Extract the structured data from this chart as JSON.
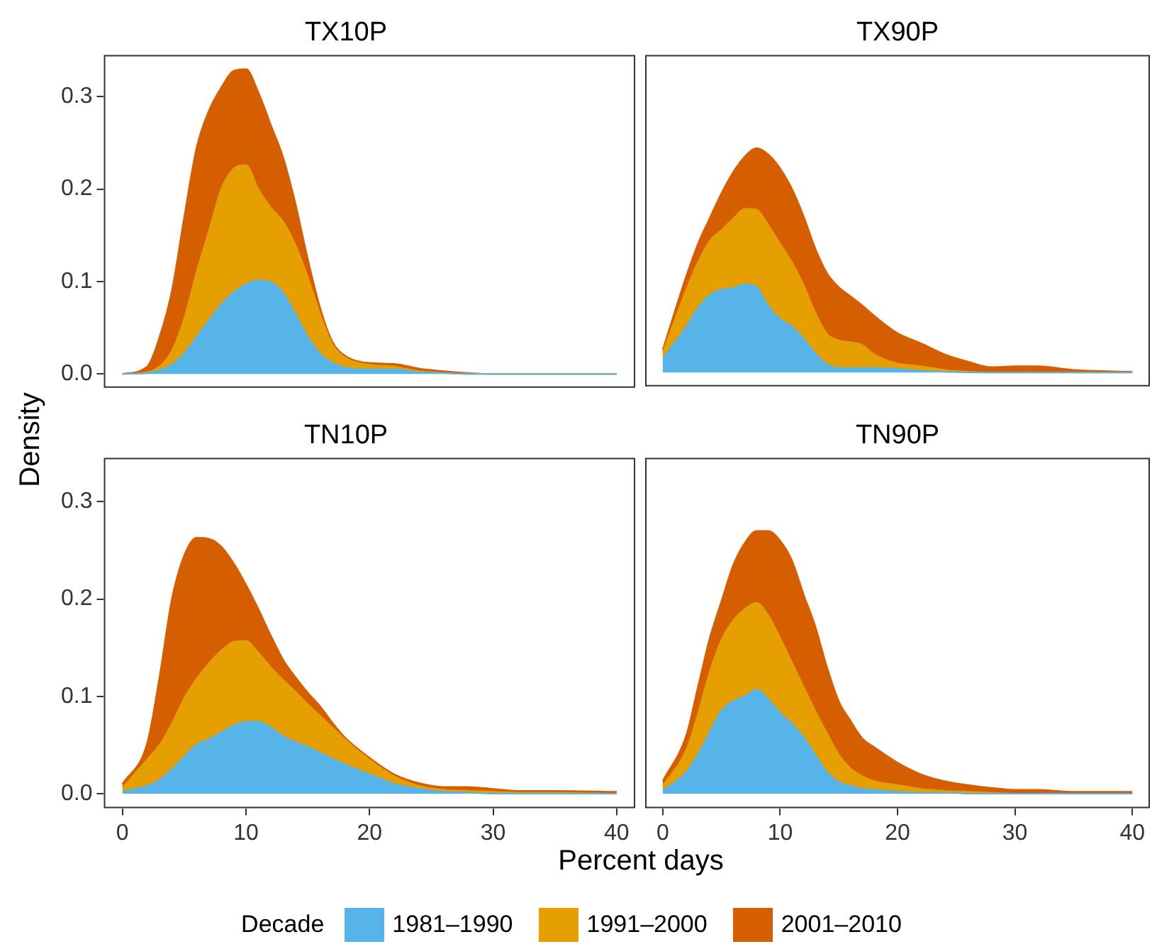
{
  "chart_data": [
    {
      "type": "area",
      "title": "TX10P",
      "ylabel": "Density",
      "stacked": true,
      "legend": "bottom",
      "legend_title": "Decade",
      "tick_labels": "y",
      "xlim": [
        -1.5,
        41.5
      ],
      "xticks": [
        0,
        10,
        20,
        30,
        40
      ],
      "ylim": [
        -0.015,
        0.345
      ],
      "yticks": [
        {
          "value": 0,
          "label": "0.0"
        },
        0.1,
        0.2,
        0.3
      ],
      "x": [
        0,
        2,
        3,
        4,
        5,
        6,
        7,
        8,
        9,
        10,
        11,
        12,
        13,
        14,
        15,
        16,
        17,
        18,
        20,
        22,
        24,
        26,
        28,
        30,
        32,
        35,
        40
      ],
      "series": [
        {
          "name": "1981–1990",
          "color": "#56b4e9",
          "values": [
            0,
            0.001,
            0.004,
            0.01,
            0.022,
            0.04,
            0.058,
            0.075,
            0.088,
            0.097,
            0.101,
            0.099,
            0.088,
            0.065,
            0.04,
            0.022,
            0.012,
            0.007,
            0.005,
            0.005,
            0.002,
            0.001,
            0,
            0,
            0,
            0,
            0
          ]
        },
        {
          "name": "1991–2000",
          "color": "#e69f00",
          "values": [
            0,
            0.001,
            0.004,
            0.015,
            0.038,
            0.07,
            0.097,
            0.125,
            0.134,
            0.129,
            0.099,
            0.081,
            0.077,
            0.075,
            0.065,
            0.043,
            0.02,
            0.011,
            0.005,
            0.003,
            0.001,
            0,
            0,
            0,
            0,
            0,
            0
          ]
        },
        {
          "name": "2001–2010",
          "color": "#d55e00",
          "values": [
            0,
            0.006,
            0.032,
            0.065,
            0.11,
            0.135,
            0.13,
            0.11,
            0.106,
            0.104,
            0.105,
            0.09,
            0.07,
            0.045,
            0.02,
            0.007,
            0.003,
            0.002,
            0.002,
            0.003,
            0.003,
            0.002,
            0.001,
            0,
            0,
            0,
            0
          ]
        }
      ]
    },
    {
      "type": "area",
      "title": "TX90P",
      "stacked": true,
      "tick_labels": false,
      "xlim": [
        -1.5,
        41.5
      ],
      "ylim": [
        -0.015,
        0.345
      ],
      "x": [
        0,
        2,
        3,
        4,
        5,
        6,
        7,
        8,
        9,
        10,
        11,
        12,
        13,
        14,
        15,
        16,
        17,
        18,
        20,
        22,
        24,
        26,
        28,
        30,
        32,
        35,
        40
      ],
      "series": [
        {
          "color": "#56b4e9",
          "values": [
            0.015,
            0.05,
            0.07,
            0.084,
            0.09,
            0.092,
            0.096,
            0.093,
            0.072,
            0.058,
            0.05,
            0.037,
            0.021,
            0.009,
            0.005,
            0.005,
            0.005,
            0.005,
            0.004,
            0.002,
            0.001,
            0,
            0,
            0,
            0,
            0,
            0
          ]
        },
        {
          "color": "#e69f00",
          "values": [
            0.007,
            0.04,
            0.05,
            0.059,
            0.065,
            0.075,
            0.082,
            0.084,
            0.088,
            0.082,
            0.07,
            0.058,
            0.044,
            0.033,
            0.03,
            0.028,
            0.025,
            0.015,
            0.006,
            0.005,
            0.002,
            0.001,
            0,
            0,
            0,
            0,
            0
          ]
        },
        {
          "color": "#d55e00",
          "values": [
            0.003,
            0.015,
            0.02,
            0.025,
            0.04,
            0.051,
            0.057,
            0.067,
            0.077,
            0.082,
            0.08,
            0.075,
            0.07,
            0.066,
            0.058,
            0.05,
            0.043,
            0.042,
            0.033,
            0.025,
            0.017,
            0.011,
            0.006,
            0.007,
            0.007,
            0.003,
            0.001
          ]
        }
      ]
    },
    {
      "type": "area",
      "title": "TN10P",
      "xlabel": "Percent days",
      "stacked": true,
      "xlim": [
        -1.5,
        41.5
      ],
      "xticks": [
        0,
        10,
        20,
        30,
        40
      ],
      "ylim": [
        -0.015,
        0.345
      ],
      "yticks": [
        {
          "value": 0,
          "label": "0.0"
        },
        0.1,
        0.2,
        0.3
      ],
      "x": [
        0,
        2,
        3,
        4,
        5,
        6,
        7,
        8,
        9,
        10,
        11,
        12,
        13,
        14,
        15,
        16,
        17,
        18,
        20,
        22,
        24,
        26,
        28,
        30,
        32,
        35,
        40
      ],
      "series": [
        {
          "color": "#56b4e9",
          "values": [
            0.002,
            0.008,
            0.014,
            0.025,
            0.038,
            0.05,
            0.056,
            0.063,
            0.07,
            0.074,
            0.074,
            0.068,
            0.059,
            0.053,
            0.048,
            0.042,
            0.036,
            0.03,
            0.02,
            0.01,
            0.005,
            0.002,
            0.001,
            0,
            0,
            0,
            0
          ]
        },
        {
          "color": "#e69f00",
          "values": [
            0.004,
            0.027,
            0.036,
            0.047,
            0.06,
            0.068,
            0.078,
            0.084,
            0.086,
            0.083,
            0.071,
            0.062,
            0.058,
            0.052,
            0.044,
            0.038,
            0.032,
            0.026,
            0.015,
            0.008,
            0.003,
            0.002,
            0.002,
            0.002,
            0.001,
            0.001,
            0
          ]
        },
        {
          "color": "#d55e00",
          "values": [
            0.004,
            0.017,
            0.07,
            0.128,
            0.147,
            0.145,
            0.128,
            0.107,
            0.081,
            0.058,
            0.045,
            0.033,
            0.021,
            0.015,
            0.012,
            0.01,
            0.005,
            0.002,
            0.002,
            0.002,
            0.003,
            0.003,
            0.004,
            0.003,
            0.002,
            0.002,
            0.002
          ]
        }
      ]
    },
    {
      "type": "area",
      "title": "TN90P",
      "stacked": true,
      "tick_labels": "x",
      "xlim": [
        -1.5,
        41.5
      ],
      "xticks": [
        0,
        10,
        20,
        30,
        40
      ],
      "ylim": [
        -0.015,
        0.345
      ],
      "x": [
        0,
        2,
        3,
        4,
        5,
        6,
        7,
        8,
        9,
        10,
        11,
        12,
        13,
        14,
        15,
        16,
        17,
        18,
        20,
        22,
        24,
        26,
        28,
        30,
        32,
        35,
        40
      ],
      "series": [
        {
          "color": "#56b4e9",
          "values": [
            0.003,
            0.022,
            0.04,
            0.063,
            0.085,
            0.095,
            0.1,
            0.107,
            0.097,
            0.083,
            0.072,
            0.058,
            0.04,
            0.022,
            0.012,
            0.008,
            0.005,
            0.004,
            0.002,
            0.001,
            0.001,
            0,
            0,
            0,
            0,
            0,
            0
          ]
        },
        {
          "color": "#e69f00",
          "values": [
            0.005,
            0.023,
            0.042,
            0.062,
            0.073,
            0.083,
            0.09,
            0.089,
            0.086,
            0.077,
            0.063,
            0.052,
            0.045,
            0.04,
            0.028,
            0.018,
            0.013,
            0.009,
            0.007,
            0.004,
            0.002,
            0.002,
            0.001,
            0,
            0,
            0,
            0
          ]
        },
        {
          "color": "#d55e00",
          "values": [
            0.005,
            0.015,
            0.028,
            0.035,
            0.04,
            0.057,
            0.068,
            0.074,
            0.087,
            0.1,
            0.105,
            0.095,
            0.087,
            0.068,
            0.055,
            0.049,
            0.039,
            0.035,
            0.023,
            0.015,
            0.01,
            0.007,
            0.005,
            0.004,
            0.004,
            0.002,
            0.002
          ]
        }
      ]
    }
  ]
}
